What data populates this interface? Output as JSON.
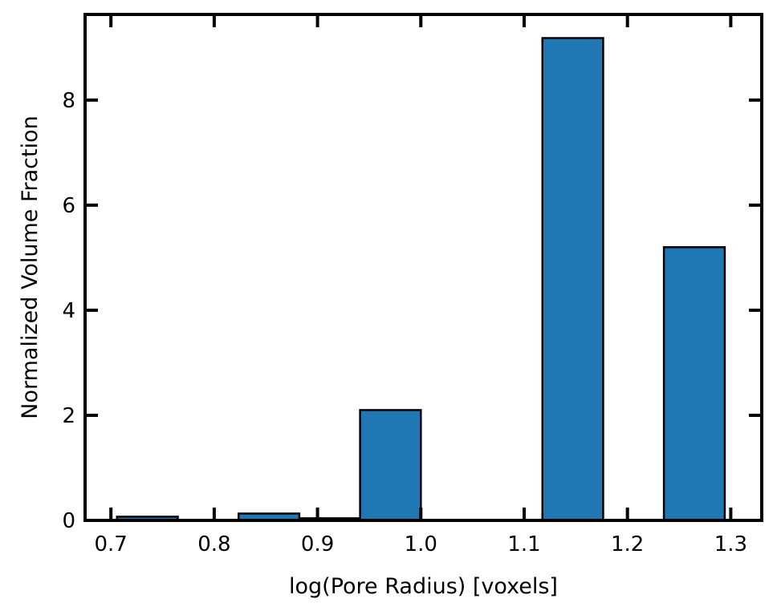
{
  "chart_data": {
    "type": "bar",
    "title": "",
    "xlabel": "log(Pore Radius) [voxels]",
    "ylabel": "Normalized Volume Fraction",
    "xlim": [
      0.675,
      1.33
    ],
    "ylim": [
      0,
      9.63
    ],
    "xticks": [
      0.7,
      0.8,
      0.9,
      1.0,
      1.1,
      1.2,
      1.3
    ],
    "xtick_labels": [
      "0.7",
      "0.8",
      "0.9",
      "1.0",
      "1.1",
      "1.2",
      "1.3"
    ],
    "yticks": [
      0,
      2,
      4,
      6,
      8
    ],
    "ytick_labels": [
      "0",
      "2",
      "4",
      "6",
      "8"
    ],
    "bar_color": "#1f77b4",
    "edge_color": "#000000",
    "grid": false,
    "bars": [
      {
        "x0": 0.7059,
        "x1": 0.7648,
        "value": 0.07
      },
      {
        "x0": 0.8236,
        "x1": 0.8824,
        "value": 0.13
      },
      {
        "x0": 0.8824,
        "x1": 0.9412,
        "value": 0.04
      },
      {
        "x0": 0.9412,
        "x1": 1.0,
        "value": 2.1
      },
      {
        "x0": 1.1177,
        "x1": 1.1765,
        "value": 9.18
      },
      {
        "x0": 1.2353,
        "x1": 1.2942,
        "value": 5.2
      }
    ]
  }
}
